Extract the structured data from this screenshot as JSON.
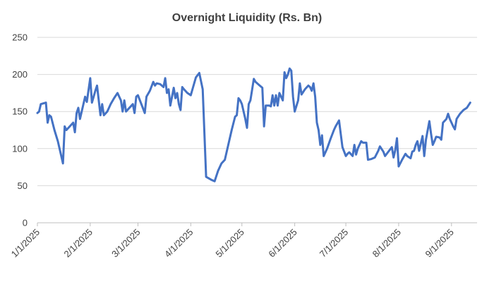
{
  "chart_data": {
    "type": "line",
    "title": "Overnight Liquidity (Rs. Bn)",
    "xlabel": "",
    "ylabel": "",
    "ylim": [
      0,
      250
    ],
    "yticks": [
      0,
      50,
      100,
      150,
      200,
      250
    ],
    "xlim_days": [
      0,
      258
    ],
    "xticks": [
      {
        "label": "1/1/2025",
        "day": 0
      },
      {
        "label": "2/1/2025",
        "day": 31
      },
      {
        "label": "3/1/2025",
        "day": 59
      },
      {
        "label": "4/1/2025",
        "day": 90
      },
      {
        "label": "5/1/2025",
        "day": 120
      },
      {
        "label": "6/1/2025",
        "day": 151
      },
      {
        "label": "7/1/2025",
        "day": 181
      },
      {
        "label": "8/1/2025",
        "day": 212
      },
      {
        "label": "9/1/2025",
        "day": 243
      }
    ],
    "grid": true,
    "legend": "none",
    "series": [
      {
        "name": "Overnight Liquidity",
        "color": "#4472c4",
        "points": [
          [
            0,
            148
          ],
          [
            1,
            150
          ],
          [
            2,
            160
          ],
          [
            5,
            162
          ],
          [
            6,
            135
          ],
          [
            7,
            145
          ],
          [
            8,
            143
          ],
          [
            10,
            125
          ],
          [
            12,
            110
          ],
          [
            15,
            80
          ],
          [
            16,
            130
          ],
          [
            17,
            125
          ],
          [
            19,
            130
          ],
          [
            21,
            135
          ],
          [
            22,
            122
          ],
          [
            23,
            148
          ],
          [
            24,
            155
          ],
          [
            25,
            140
          ],
          [
            27,
            160
          ],
          [
            28,
            170
          ],
          [
            29,
            163
          ],
          [
            31,
            195
          ],
          [
            32,
            162
          ],
          [
            33,
            170
          ],
          [
            34,
            178
          ],
          [
            35,
            185
          ],
          [
            37,
            145
          ],
          [
            38,
            160
          ],
          [
            39,
            145
          ],
          [
            41,
            150
          ],
          [
            43,
            160
          ],
          [
            45,
            168
          ],
          [
            47,
            175
          ],
          [
            49,
            165
          ],
          [
            50,
            150
          ],
          [
            51,
            165
          ],
          [
            52,
            150
          ],
          [
            54,
            155
          ],
          [
            56,
            160
          ],
          [
            57,
            148
          ],
          [
            58,
            170
          ],
          [
            59,
            172
          ],
          [
            61,
            160
          ],
          [
            63,
            148
          ],
          [
            64,
            170
          ],
          [
            66,
            178
          ],
          [
            68,
            190
          ],
          [
            69,
            185
          ],
          [
            70,
            188
          ],
          [
            72,
            187
          ],
          [
            74,
            183
          ],
          [
            75,
            195
          ],
          [
            76,
            175
          ],
          [
            77,
            180
          ],
          [
            78,
            158
          ],
          [
            80,
            182
          ],
          [
            81,
            168
          ],
          [
            82,
            175
          ],
          [
            83,
            160
          ],
          [
            84,
            152
          ],
          [
            85,
            183
          ],
          [
            86,
            180
          ],
          [
            88,
            175
          ],
          [
            90,
            172
          ],
          [
            91,
            180
          ],
          [
            93,
            196
          ],
          [
            95,
            202
          ],
          [
            97,
            180
          ],
          [
            99,
            62
          ],
          [
            102,
            58
          ],
          [
            104,
            56
          ],
          [
            106,
            70
          ],
          [
            108,
            80
          ],
          [
            110,
            85
          ],
          [
            112,
            105
          ],
          [
            114,
            125
          ],
          [
            116,
            143
          ],
          [
            117,
            145
          ],
          [
            118,
            168
          ],
          [
            119,
            165
          ],
          [
            120,
            160
          ],
          [
            122,
            140
          ],
          [
            123,
            128
          ],
          [
            124,
            160
          ],
          [
            125,
            165
          ],
          [
            127,
            194
          ],
          [
            128,
            190
          ],
          [
            130,
            186
          ],
          [
            132,
            182
          ],
          [
            133,
            130
          ],
          [
            134,
            158
          ],
          [
            136,
            158
          ],
          [
            137,
            157
          ],
          [
            138,
            172
          ],
          [
            139,
            158
          ],
          [
            140,
            172
          ],
          [
            141,
            158
          ],
          [
            142,
            175
          ],
          [
            144,
            165
          ],
          [
            145,
            203
          ],
          [
            146,
            195
          ],
          [
            147,
            200
          ],
          [
            148,
            208
          ],
          [
            149,
            205
          ],
          [
            150,
            170
          ],
          [
            151,
            150
          ],
          [
            153,
            165
          ],
          [
            154,
            188
          ],
          [
            155,
            173
          ],
          [
            157,
            180
          ],
          [
            159,
            185
          ],
          [
            160,
            183
          ],
          [
            161,
            178
          ],
          [
            162,
            188
          ],
          [
            163,
            170
          ],
          [
            164,
            135
          ],
          [
            165,
            125
          ],
          [
            166,
            105
          ],
          [
            167,
            118
          ],
          [
            168,
            90
          ],
          [
            170,
            100
          ],
          [
            172,
            113
          ],
          [
            174,
            125
          ],
          [
            175,
            130
          ],
          [
            177,
            138
          ],
          [
            178,
            120
          ],
          [
            179,
            102
          ],
          [
            181,
            90
          ],
          [
            182,
            93
          ],
          [
            183,
            95
          ],
          [
            185,
            90
          ],
          [
            186,
            105
          ],
          [
            187,
            92
          ],
          [
            188,
            100
          ],
          [
            190,
            110
          ],
          [
            191,
            108
          ],
          [
            193,
            108
          ],
          [
            194,
            85
          ],
          [
            196,
            86
          ],
          [
            198,
            88
          ],
          [
            200,
            97
          ],
          [
            201,
            103
          ],
          [
            203,
            96
          ],
          [
            204,
            90
          ],
          [
            206,
            96
          ],
          [
            208,
            102
          ],
          [
            209,
            88
          ],
          [
            210,
            98
          ],
          [
            211,
            114
          ],
          [
            212,
            76
          ],
          [
            214,
            85
          ],
          [
            216,
            93
          ],
          [
            217,
            90
          ],
          [
            219,
            87
          ],
          [
            220,
            96
          ],
          [
            221,
            97
          ],
          [
            222,
            105
          ],
          [
            223,
            110
          ],
          [
            224,
            97
          ],
          [
            226,
            117
          ],
          [
            227,
            90
          ],
          [
            228,
            112
          ],
          [
            230,
            137
          ],
          [
            231,
            120
          ],
          [
            232,
            105
          ],
          [
            233,
            110
          ],
          [
            234,
            116
          ],
          [
            236,
            115
          ],
          [
            237,
            112
          ],
          [
            238,
            135
          ],
          [
            240,
            140
          ],
          [
            241,
            147
          ],
          [
            242,
            140
          ],
          [
            244,
            130
          ],
          [
            245,
            126
          ],
          [
            246,
            140
          ],
          [
            248,
            147
          ],
          [
            250,
            152
          ],
          [
            252,
            155
          ],
          [
            254,
            162
          ]
        ]
      }
    ]
  }
}
